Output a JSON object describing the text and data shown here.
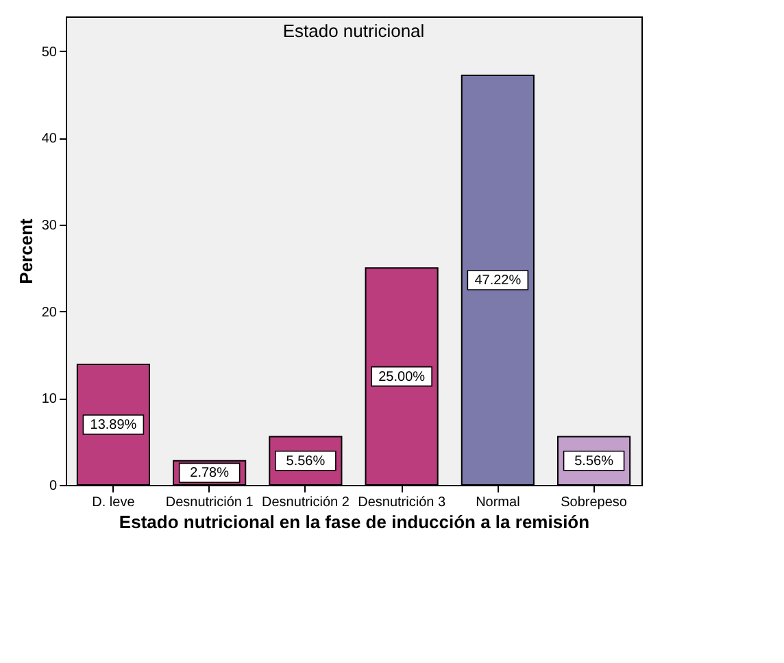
{
  "chart_data": {
    "type": "bar",
    "title": "Estado nutricional",
    "xlabel": "Estado nutricional en la fase de inducción a la remisión",
    "ylabel": "Percent",
    "categories": [
      "D. leve",
      "Desnutrición 1",
      "Desnutrición 2",
      "Desnutrición 3",
      "Normal",
      "Sobrepeso"
    ],
    "values": [
      13.89,
      2.78,
      5.56,
      25.0,
      47.22,
      5.56
    ],
    "colors": [
      "#bb3d7d",
      "#bb3d7d",
      "#bb3d7d",
      "#bb3d7d",
      "#7b7aaa",
      "#c39fcc"
    ],
    "value_labels": [
      "13.89%",
      "2.78%",
      "5.56%",
      "25.00%",
      "47.22%",
      "5.56%"
    ],
    "ylim": [
      0,
      54
    ],
    "yticks": [
      0,
      10,
      20,
      30,
      40,
      50
    ],
    "grid": false
  }
}
